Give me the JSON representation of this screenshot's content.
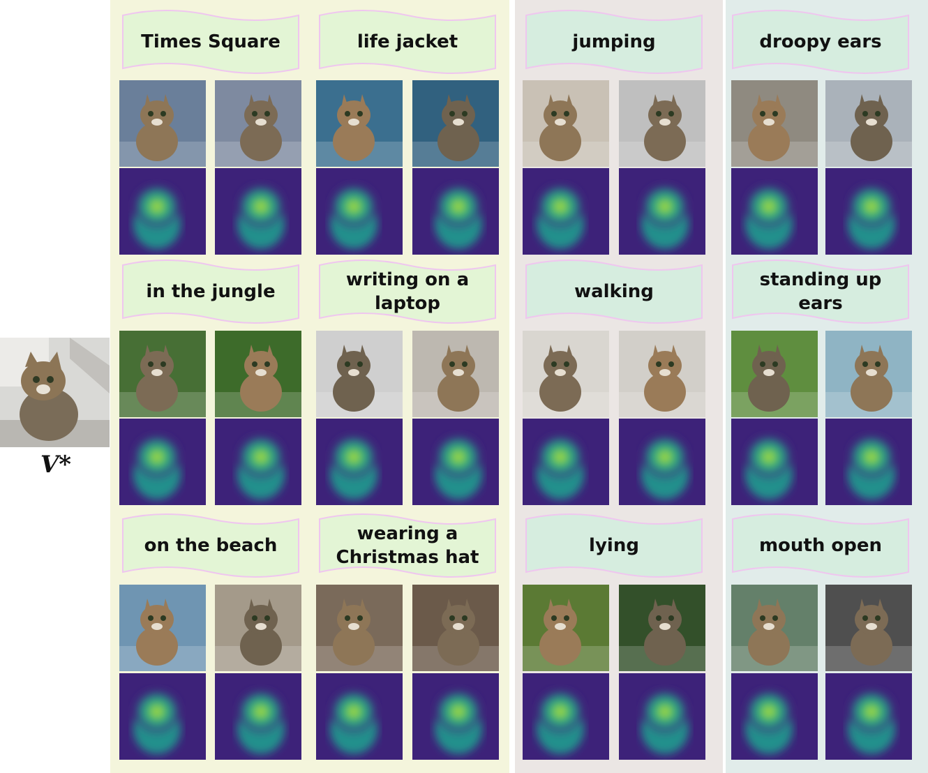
{
  "reference": {
    "label": "V*"
  },
  "columns": [
    {
      "color": "#f4f5dc",
      "banner": "#e3f5d5",
      "cells": [
        {
          "prompt": "Times Square"
        },
        {
          "prompt": "in the jungle"
        },
        {
          "prompt": "on the beach"
        },
        {
          "prompt": "life jacket"
        },
        {
          "prompt": "writing on a laptop"
        },
        {
          "prompt": "wearing a Christmas hat"
        }
      ]
    },
    {
      "color": "#ebe6e4",
      "banner": "#d6eddf",
      "cells": [
        {
          "prompt": "jumping"
        },
        {
          "prompt": "walking"
        },
        {
          "prompt": "lying"
        }
      ]
    },
    {
      "color": "#e1ecea",
      "banner": "#d6eddf",
      "cells": [
        {
          "prompt": "droopy ears"
        },
        {
          "prompt": "standing up ears"
        },
        {
          "prompt": "mouth open"
        }
      ]
    }
  ],
  "colors": {
    "banner_border": "#efc6ef",
    "heatmap_background": "#3d2279",
    "heatmap_mid": "#24908c",
    "heatmap_high": "#4ec562",
    "heatmap_peak": "#e6e41c"
  }
}
